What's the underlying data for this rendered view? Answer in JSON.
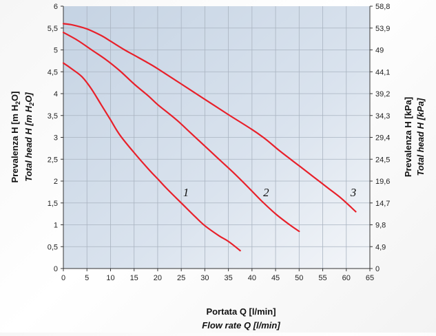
{
  "chart_data": {
    "type": "line",
    "x_axis": {
      "label_line1": "Portata Q [l/min]",
      "label_line2": "Flow rate Q [l/min]",
      "range": [
        0,
        65
      ],
      "ticks": [
        "0",
        "5",
        "10",
        "15",
        "20",
        "25",
        "30",
        "35",
        "40",
        "45",
        "50",
        "55",
        "60",
        "65"
      ]
    },
    "y_axis_left": {
      "label_line1": "Prevalenza H [m H",
      "label_line1_sub": "2",
      "label_line1_end": "O]",
      "label_line2": "Total head H [m H",
      "label_line2_sub": "2",
      "label_line2_end": "O]",
      "range": [
        0,
        6
      ],
      "ticks": [
        "0",
        "0,5",
        "1",
        "1,5",
        "2",
        "2,5",
        "3",
        "3,5",
        "4",
        "4,5",
        "5",
        "5,5",
        "6"
      ]
    },
    "y_axis_right": {
      "label_line1": "Prevalenza H [kPa]",
      "label_line2": "Total head H [kPa]",
      "ticks": [
        "0",
        "4,9",
        "9,8",
        "14,7",
        "19,6",
        "24,5",
        "29,4",
        "34,3",
        "39,2",
        "44,1",
        "49",
        "53,9",
        "58,8"
      ]
    },
    "grid": true,
    "series": [
      {
        "name": "1",
        "color": "#e8202a",
        "points": [
          [
            0,
            4.7
          ],
          [
            2,
            4.55
          ],
          [
            4,
            4.38
          ],
          [
            6,
            4.1
          ],
          [
            8,
            3.75
          ],
          [
            10,
            3.4
          ],
          [
            12,
            3.05
          ],
          [
            15,
            2.65
          ],
          [
            18,
            2.28
          ],
          [
            20,
            2.05
          ],
          [
            22,
            1.82
          ],
          [
            25,
            1.5
          ],
          [
            28,
            1.18
          ],
          [
            30,
            0.98
          ],
          [
            33,
            0.75
          ],
          [
            35,
            0.62
          ],
          [
            37.5,
            0.41
          ]
        ],
        "label_at": [
          26,
          1.65
        ]
      },
      {
        "name": "2",
        "color": "#e8202a",
        "points": [
          [
            0,
            5.4
          ],
          [
            3,
            5.22
          ],
          [
            6,
            5.0
          ],
          [
            9,
            4.78
          ],
          [
            12,
            4.52
          ],
          [
            15,
            4.22
          ],
          [
            18,
            3.95
          ],
          [
            20,
            3.75
          ],
          [
            24,
            3.4
          ],
          [
            27,
            3.1
          ],
          [
            30,
            2.8
          ],
          [
            33,
            2.5
          ],
          [
            36,
            2.2
          ],
          [
            39,
            1.88
          ],
          [
            42,
            1.55
          ],
          [
            45,
            1.25
          ],
          [
            48,
            1.0
          ],
          [
            50,
            0.85
          ]
        ],
        "label_at": [
          43,
          1.65
        ]
      },
      {
        "name": "3",
        "color": "#e8202a",
        "points": [
          [
            0,
            5.6
          ],
          [
            2,
            5.57
          ],
          [
            5,
            5.48
          ],
          [
            8,
            5.33
          ],
          [
            10,
            5.2
          ],
          [
            13,
            5.0
          ],
          [
            15,
            4.88
          ],
          [
            18,
            4.7
          ],
          [
            20,
            4.57
          ],
          [
            25,
            4.22
          ],
          [
            30,
            3.87
          ],
          [
            35,
            3.52
          ],
          [
            40,
            3.18
          ],
          [
            43,
            2.95
          ],
          [
            46,
            2.68
          ],
          [
            50,
            2.35
          ],
          [
            53,
            2.1
          ],
          [
            56,
            1.85
          ],
          [
            59,
            1.6
          ],
          [
            62,
            1.3
          ]
        ],
        "label_at": [
          61.5,
          1.65
        ]
      }
    ]
  }
}
